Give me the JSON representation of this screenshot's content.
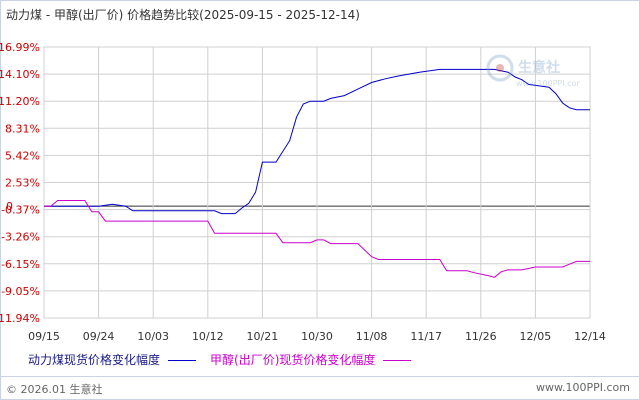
{
  "header": {
    "title": "动力煤 - 甲醇(出厂价) 价格趋势比较(2025-09-15 - 2025-12-14)"
  },
  "footer": {
    "copyright": "© 2026.01 生意社",
    "site": "www.100PPI.com"
  },
  "watermark": {
    "name": "生意社",
    "site": "www.100PPI.com"
  },
  "colors": {
    "series1": "#0000cc",
    "series2": "#cc00cc",
    "grid": "#d0d0d0",
    "axis_text": "#cc0000"
  },
  "chart_data": {
    "type": "line",
    "title": "动力煤 - 甲醇(出厂价) 价格趋势比较(2025-09-15 - 2025-12-14)",
    "x_ticks": [
      "09/15",
      "09/24",
      "10/03",
      "10/12",
      "10/21",
      "10/30",
      "11/08",
      "11/17",
      "11/26",
      "12/05",
      "12/14"
    ],
    "y_ticks": [
      "16.99%",
      "14.10%",
      "11.20%",
      "8.31%",
      "5.42%",
      "2.53%",
      "-0.37%",
      "-3.26%",
      "-6.15%",
      "-9.05%",
      "-11.94%"
    ],
    "y_zero_label": "0",
    "ylim": [
      -11.94,
      16.99
    ],
    "grid": true,
    "legend_position": "bottom-left",
    "series": [
      {
        "name": "动力煤现货价格变化幅度",
        "color": "#0000cc",
        "points": [
          [
            0,
            0.0
          ],
          [
            8,
            0.0
          ],
          [
            10,
            0.2
          ],
          [
            12,
            0.0
          ],
          [
            13,
            -0.5
          ],
          [
            25,
            -0.5
          ],
          [
            26,
            -0.8
          ],
          [
            28,
            -0.8
          ],
          [
            29,
            -0.2
          ],
          [
            30,
            0.3
          ],
          [
            31,
            1.5
          ],
          [
            32,
            4.7
          ],
          [
            34,
            4.7
          ],
          [
            36,
            7.0
          ],
          [
            37,
            9.5
          ],
          [
            38,
            10.9
          ],
          [
            39,
            11.2
          ],
          [
            41,
            11.2
          ],
          [
            42,
            11.5
          ],
          [
            44,
            11.8
          ],
          [
            46,
            12.5
          ],
          [
            48,
            13.2
          ],
          [
            50,
            13.6
          ],
          [
            52,
            13.9
          ],
          [
            55,
            14.3
          ],
          [
            58,
            14.6
          ],
          [
            66,
            14.6
          ],
          [
            68,
            14.3
          ],
          [
            69,
            13.8
          ],
          [
            70,
            13.5
          ],
          [
            71,
            13.0
          ],
          [
            74,
            12.7
          ],
          [
            75,
            12.0
          ],
          [
            76,
            11.0
          ],
          [
            77,
            10.5
          ],
          [
            78,
            10.3
          ],
          [
            80,
            10.3
          ]
        ]
      },
      {
        "name": "甲醇(出厂价)现货价格变化幅度",
        "color": "#cc00cc",
        "points": [
          [
            0,
            0.0
          ],
          [
            1,
            0.0
          ],
          [
            2,
            0.6
          ],
          [
            6,
            0.6
          ],
          [
            7,
            -0.6
          ],
          [
            8,
            -0.6
          ],
          [
            9,
            -1.6
          ],
          [
            24,
            -1.6
          ],
          [
            25,
            -2.9
          ],
          [
            34,
            -2.9
          ],
          [
            35,
            -3.9
          ],
          [
            39,
            -3.9
          ],
          [
            40,
            -3.6
          ],
          [
            41,
            -3.6
          ],
          [
            42,
            -4.0
          ],
          [
            46,
            -4.0
          ],
          [
            48,
            -5.4
          ],
          [
            49,
            -5.7
          ],
          [
            58,
            -5.7
          ],
          [
            59,
            -6.9
          ],
          [
            62,
            -6.9
          ],
          [
            63,
            -7.1
          ],
          [
            65,
            -7.4
          ],
          [
            66,
            -7.6
          ],
          [
            67,
            -7.0
          ],
          [
            68,
            -6.8
          ],
          [
            70,
            -6.8
          ],
          [
            72,
            -6.5
          ],
          [
            76,
            -6.5
          ],
          [
            77,
            -6.2
          ],
          [
            78,
            -5.9
          ],
          [
            80,
            -5.9
          ]
        ]
      }
    ]
  }
}
